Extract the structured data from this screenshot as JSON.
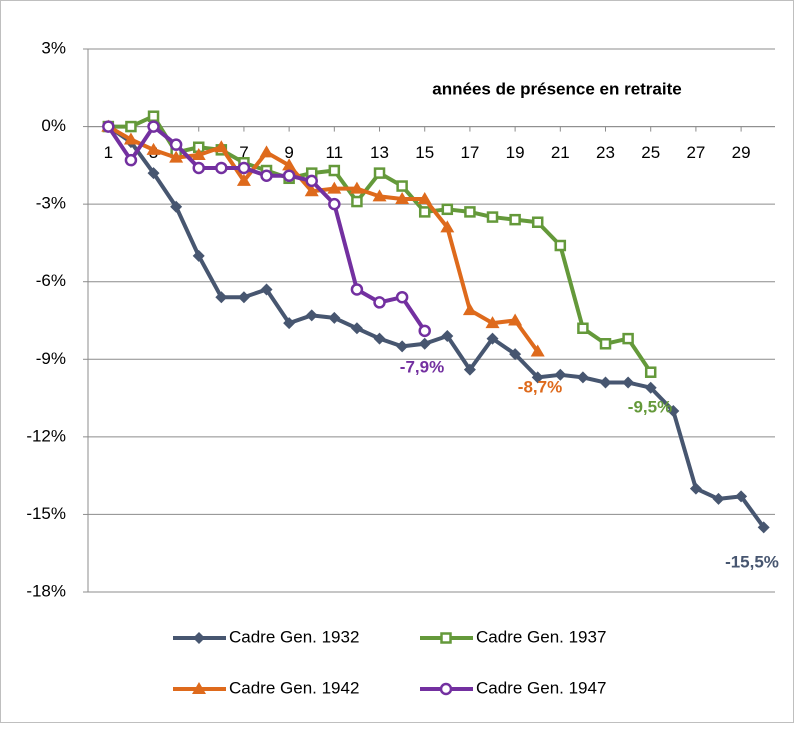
{
  "chart_data": {
    "type": "line",
    "title": "années de présence en retraite",
    "x": [
      1,
      2,
      3,
      4,
      5,
      6,
      7,
      8,
      9,
      10,
      11,
      12,
      13,
      14,
      15,
      16,
      17,
      18,
      19,
      20,
      21,
      22,
      23,
      24,
      25,
      26,
      27,
      28,
      29,
      30
    ],
    "xlim": [
      0.1,
      30.5
    ],
    "xticks": [
      1,
      3,
      5,
      7,
      9,
      11,
      13,
      15,
      17,
      19,
      21,
      23,
      25,
      27,
      29
    ],
    "ylim": [
      -18,
      3
    ],
    "yticks": [
      {
        "value": -18,
        "label": "-18%"
      },
      {
        "value": -15,
        "label": "-15%"
      },
      {
        "value": -12,
        "label": "-12%"
      },
      {
        "value": -9,
        "label": "-9%"
      },
      {
        "value": -6,
        "label": "-6%"
      },
      {
        "value": -3,
        "label": "-3%"
      },
      {
        "value": 0,
        "label": "0%"
      },
      {
        "value": 3,
        "label": "3%"
      }
    ],
    "grid": true,
    "series": [
      {
        "name": "Cadre Gen. 1932",
        "color": "#475670",
        "marker": "diamond",
        "values": [
          0,
          -0.6,
          -1.8,
          -3.1,
          -5.0,
          -6.6,
          -6.6,
          -6.3,
          -7.6,
          -7.3,
          -7.4,
          -7.8,
          -8.2,
          -8.5,
          -8.4,
          -8.1,
          -9.4,
          -8.2,
          -8.8,
          -9.7,
          -9.6,
          -9.7,
          -9.9,
          -9.9,
          -10.1,
          -11.0,
          -14.0,
          -14.4,
          -14.3,
          -15.5
        ],
        "end_label": "-15,5%"
      },
      {
        "name": "Cadre Gen. 1937",
        "color": "#64993a",
        "marker": "square",
        "values": [
          0,
          0,
          0.4,
          -1.0,
          -0.8,
          -0.9,
          -1.4,
          -1.7,
          -2.0,
          -1.8,
          -1.7,
          -2.9,
          -1.8,
          -2.3,
          -3.3,
          -3.2,
          -3.3,
          -3.5,
          -3.6,
          -3.7,
          -4.6,
          -7.8,
          -8.4,
          -8.2,
          -9.5,
          null,
          null,
          null,
          null,
          null
        ],
        "end_label": "-9,5%"
      },
      {
        "name": "Cadre Gen. 1942",
        "color": "#de6a1c",
        "marker": "triangle",
        "values": [
          0,
          -0.5,
          -0.9,
          -1.2,
          -1.1,
          -0.8,
          -2.1,
          -1.0,
          -1.5,
          -2.5,
          -2.4,
          -2.4,
          -2.7,
          -2.8,
          -2.8,
          -3.9,
          -7.1,
          -7.6,
          -7.5,
          -8.7,
          null,
          null,
          null,
          null,
          null,
          null,
          null,
          null,
          null,
          null
        ],
        "end_label": "-8,7%"
      },
      {
        "name": "Cadre Gen. 1947",
        "color": "#7330a0",
        "marker": "circle",
        "values": [
          0,
          -1.3,
          0,
          -0.7,
          -1.6,
          -1.6,
          -1.6,
          -1.9,
          -1.9,
          -2.1,
          -3.0,
          -6.3,
          -6.8,
          -6.6,
          -7.9,
          null,
          null,
          null,
          null,
          null,
          null,
          null,
          null,
          null,
          null,
          null,
          null,
          null,
          null,
          null
        ],
        "end_label": "-7,9%"
      }
    ]
  }
}
